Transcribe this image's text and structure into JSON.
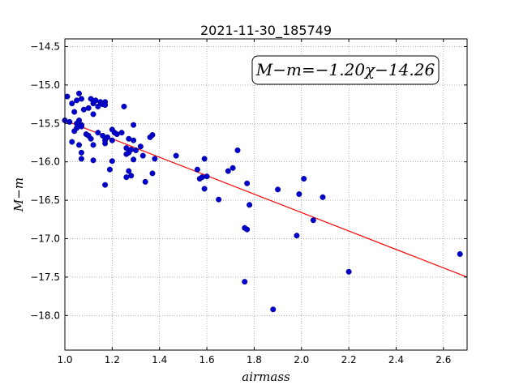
{
  "chart_data": {
    "type": "scatter",
    "title": "2021-11-30_185749",
    "xlabel": "airmass",
    "ylabel": "M−m",
    "annotation": "M−m=−1.20χ−14.26",
    "xlim": [
      1.0,
      2.7
    ],
    "ylim": [
      -14.4,
      -18.45
    ],
    "y_inverted": true,
    "grid": true,
    "x_ticks": [
      "1.0",
      "1.2",
      "1.4",
      "1.6",
      "1.8",
      "2.0",
      "2.2",
      "2.4",
      "2.6"
    ],
    "y_ticks": [
      "−14.5",
      "−15.0",
      "−15.5",
      "−16.0",
      "−16.5",
      "−17.0",
      "−17.5",
      "−18.0"
    ],
    "point_color": "#0000cc",
    "line_color": "#ff0000",
    "fit": {
      "slope": -1.2,
      "intercept": -14.26,
      "x_range": [
        1.0,
        2.7
      ]
    },
    "points": [
      [
        1.01,
        -15.15
      ],
      [
        1.03,
        -15.24
      ],
      [
        1.04,
        -15.35
      ],
      [
        1.05,
        -15.2
      ],
      [
        1.06,
        -15.11
      ],
      [
        1.07,
        -15.18
      ],
      [
        1.05,
        -15.5
      ],
      [
        1.06,
        -15.46
      ],
      [
        1.07,
        -15.52
      ],
      [
        1.08,
        -15.32
      ],
      [
        1.1,
        -15.3
      ],
      [
        1.11,
        -15.18
      ],
      [
        1.12,
        -15.24
      ],
      [
        1.13,
        -15.2
      ],
      [
        1.14,
        -15.28
      ],
      [
        1.15,
        -15.22
      ],
      [
        1.16,
        -15.25
      ],
      [
        1.17,
        -15.22
      ],
      [
        1.17,
        -15.26
      ],
      [
        1.0,
        -15.46
      ],
      [
        1.02,
        -15.48
      ],
      [
        1.04,
        -15.6
      ],
      [
        1.05,
        -15.56
      ],
      [
        1.06,
        -15.52
      ],
      [
        1.07,
        -15.54
      ],
      [
        1.09,
        -15.64
      ],
      [
        1.1,
        -15.66
      ],
      [
        1.11,
        -15.7
      ],
      [
        1.12,
        -15.38
      ],
      [
        1.14,
        -15.62
      ],
      [
        1.16,
        -15.66
      ],
      [
        1.17,
        -15.72
      ],
      [
        1.18,
        -15.68
      ],
      [
        1.2,
        -15.58
      ],
      [
        1.21,
        -15.62
      ],
      [
        1.22,
        -15.64
      ],
      [
        1.24,
        -15.62
      ],
      [
        1.25,
        -15.28
      ],
      [
        1.03,
        -15.74
      ],
      [
        1.06,
        -15.78
      ],
      [
        1.07,
        -15.88
      ],
      [
        1.07,
        -15.96
      ],
      [
        1.12,
        -15.78
      ],
      [
        1.12,
        -15.98
      ],
      [
        1.17,
        -15.76
      ],
      [
        1.19,
        -16.1
      ],
      [
        1.2,
        -15.72
      ],
      [
        1.2,
        -15.99
      ],
      [
        1.17,
        -16.3
      ],
      [
        1.26,
        -15.82
      ],
      [
        1.26,
        -15.9
      ],
      [
        1.27,
        -15.88
      ],
      [
        1.28,
        -15.84
      ],
      [
        1.29,
        -15.72
      ],
      [
        1.29,
        -15.52
      ],
      [
        1.3,
        -15.85
      ],
      [
        1.32,
        -15.8
      ],
      [
        1.33,
        -15.92
      ],
      [
        1.27,
        -15.7
      ],
      [
        1.29,
        -15.97
      ],
      [
        1.26,
        -16.2
      ],
      [
        1.27,
        -16.12
      ],
      [
        1.28,
        -16.18
      ],
      [
        1.34,
        -16.26
      ],
      [
        1.36,
        -15.68
      ],
      [
        1.37,
        -15.65
      ],
      [
        1.37,
        -16.15
      ],
      [
        1.38,
        -15.96
      ],
      [
        1.47,
        -15.92
      ],
      [
        1.56,
        -16.1
      ],
      [
        1.57,
        -16.22
      ],
      [
        1.58,
        -16.2
      ],
      [
        1.59,
        -15.96
      ],
      [
        1.59,
        -16.35
      ],
      [
        1.6,
        -16.19
      ],
      [
        1.65,
        -16.49
      ],
      [
        1.69,
        -16.12
      ],
      [
        1.71,
        -16.08
      ],
      [
        1.73,
        -15.85
      ],
      [
        1.77,
        -16.28
      ],
      [
        1.78,
        -16.56
      ],
      [
        1.76,
        -16.86
      ],
      [
        1.77,
        -16.88
      ],
      [
        1.76,
        -17.56
      ],
      [
        1.88,
        -17.92
      ],
      [
        1.9,
        -16.36
      ],
      [
        1.98,
        -16.96
      ],
      [
        1.99,
        -16.42
      ],
      [
        2.01,
        -16.22
      ],
      [
        2.05,
        -16.76
      ],
      [
        2.09,
        -16.46
      ],
      [
        2.2,
        -17.43
      ],
      [
        2.67,
        -17.2
      ]
    ]
  }
}
